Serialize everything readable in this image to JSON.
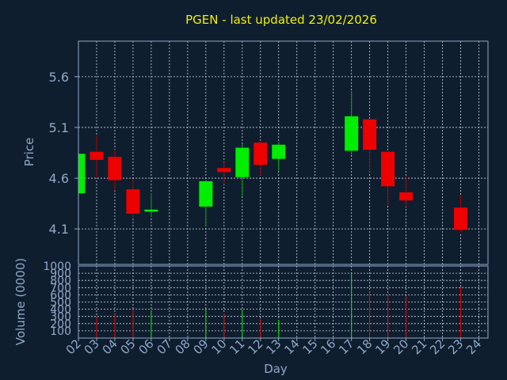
{
  "colors": {
    "background": "#0f1e2e",
    "title": "#f2f200",
    "axis_text": "#8fa8c8",
    "frame": "#8fa8c8",
    "grid": "#c8d4e4",
    "up": "#00ee00",
    "down": "#ee0000",
    "wick": "#00aa00",
    "wick_down": "#aa0000"
  },
  "chart_data": [
    {
      "type": "candlestick",
      "title": "PGEN - last updated 23/02/2026",
      "xlabel": "",
      "ylabel": "Price",
      "ylim": [
        3.75,
        5.95
      ],
      "yticks": [
        "4.1",
        "4.6",
        "5.1",
        "5.6"
      ],
      "ytick_values": [
        4.1,
        4.6,
        5.1,
        5.6
      ],
      "grid": true,
      "candles": [
        {
          "day": "02",
          "open": 4.45,
          "high": 4.85,
          "low": 4.45,
          "close": 4.84
        },
        {
          "day": "03",
          "open": 4.86,
          "high": 5.02,
          "low": 4.6,
          "close": 4.78
        },
        {
          "day": "04",
          "open": 4.81,
          "high": 4.88,
          "low": 4.48,
          "close": 4.58
        },
        {
          "day": "05",
          "open": 4.49,
          "high": 4.59,
          "low": 4.22,
          "close": 4.25
        },
        {
          "day": "06",
          "open": 4.27,
          "high": 4.45,
          "low": 4.22,
          "close": 4.29
        },
        {
          "day": "09",
          "open": 4.32,
          "high": 4.58,
          "low": 4.13,
          "close": 4.57
        },
        {
          "day": "10",
          "open": 4.7,
          "high": 4.76,
          "low": 4.54,
          "close": 4.66
        },
        {
          "day": "11",
          "open": 4.61,
          "high": 4.94,
          "low": 4.42,
          "close": 4.9
        },
        {
          "day": "12",
          "open": 4.95,
          "high": 4.97,
          "low": 4.62,
          "close": 4.73
        },
        {
          "day": "13",
          "open": 4.79,
          "high": 4.95,
          "low": 4.67,
          "close": 4.93
        },
        {
          "day": "17",
          "open": 4.87,
          "high": 5.46,
          "low": 4.83,
          "close": 5.21
        },
        {
          "day": "18",
          "open": 5.18,
          "high": 5.18,
          "low": 4.66,
          "close": 4.88
        },
        {
          "day": "19",
          "open": 4.86,
          "high": 4.86,
          "low": 4.33,
          "close": 4.52
        },
        {
          "day": "20",
          "open": 4.46,
          "high": 4.62,
          "low": 4.32,
          "close": 4.38
        },
        {
          "day": "23",
          "open": 4.31,
          "high": 4.43,
          "low": 4.06,
          "close": 4.09
        }
      ]
    },
    {
      "type": "bar",
      "title": "",
      "xlabel": "Day",
      "ylabel": "Volume (0000)",
      "ylim": [
        0,
        1000
      ],
      "yticks": [
        "100",
        "200",
        "300",
        "400",
        "500",
        "600",
        "700",
        "800",
        "900",
        "1000"
      ],
      "ytick_values": [
        100,
        200,
        300,
        400,
        500,
        600,
        700,
        800,
        900,
        1000
      ],
      "grid": true,
      "categories": [
        "02",
        "03",
        "04",
        "05",
        "06",
        "07",
        "08",
        "09",
        "10",
        "11",
        "12",
        "13",
        "14",
        "15",
        "16",
        "17",
        "18",
        "19",
        "20",
        "21",
        "22",
        "23",
        "24"
      ],
      "values": [
        0,
        290,
        330,
        390,
        380,
        0,
        0,
        400,
        340,
        390,
        270,
        250,
        0,
        0,
        0,
        900,
        640,
        600,
        580,
        0,
        0,
        710,
        0
      ],
      "directions": [
        "",
        "down",
        "down",
        "down",
        "up",
        "",
        "",
        "up",
        "down",
        "up",
        "down",
        "up",
        "",
        "",
        "",
        "up",
        "down",
        "down",
        "down",
        "",
        "",
        "down",
        ""
      ]
    }
  ]
}
